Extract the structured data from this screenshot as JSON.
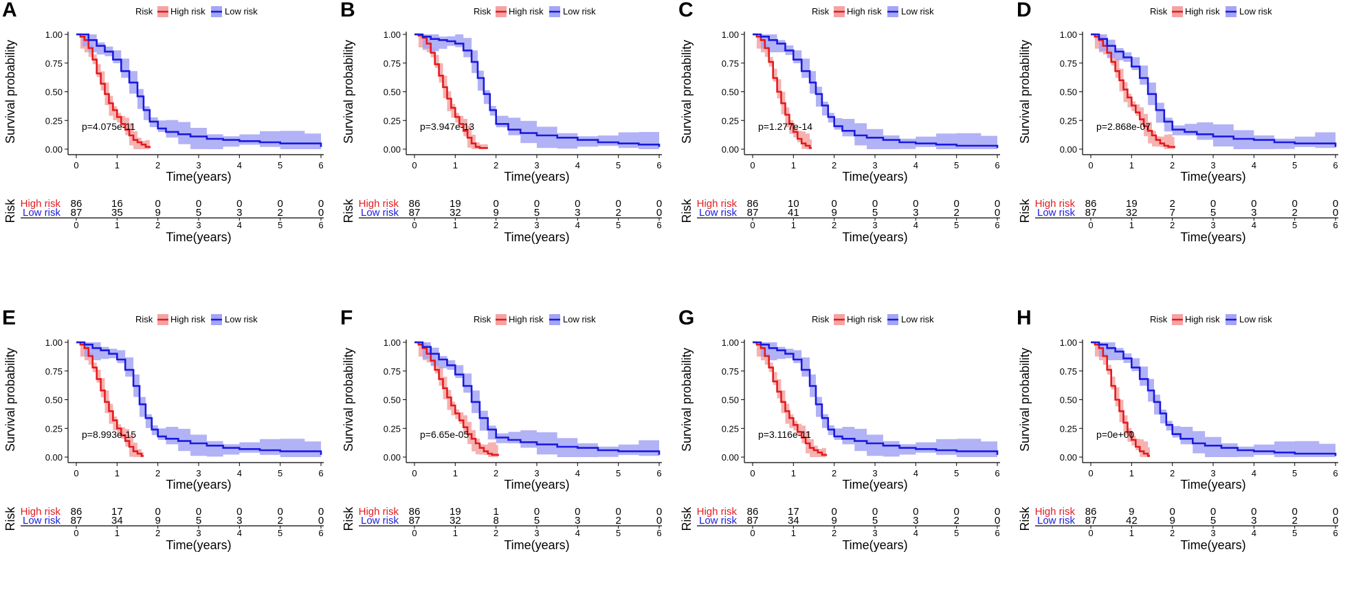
{
  "figure": {
    "xlabel": "Time(years)",
    "ylabel": "Survival probability",
    "table_ylabel": "Risk",
    "legend_title": "Risk",
    "colors": {
      "high": "#e41a1c",
      "low": "#1a1adf",
      "high_band": "#f4a3a3",
      "low_band": "#a5a5f5"
    }
  },
  "chart_data": [
    {
      "panel": "A",
      "type": "line",
      "pvalue": "p=4.075e-11",
      "xlim": [
        0,
        6
      ],
      "ylim": [
        0,
        1
      ],
      "xticks": [
        "0",
        "1",
        "2",
        "3",
        "4",
        "5",
        "6"
      ],
      "yticks": [
        "0.00",
        "0.25",
        "0.50",
        "0.75",
        "1.00"
      ],
      "series": [
        {
          "name": "High risk",
          "x": [
            0,
            0.1,
            0.2,
            0.3,
            0.4,
            0.5,
            0.6,
            0.7,
            0.8,
            0.9,
            1,
            1.1,
            1.2,
            1.3,
            1.4,
            1.5,
            1.6,
            1.7,
            1.8
          ],
          "y": [
            1,
            0.98,
            0.95,
            0.88,
            0.78,
            0.66,
            0.57,
            0.48,
            0.4,
            0.34,
            0.28,
            0.22,
            0.17,
            0.12,
            0.08,
            0.06,
            0.04,
            0.02,
            0.01
          ]
        },
        {
          "name": "Low risk",
          "x": [
            0,
            0.15,
            0.3,
            0.5,
            0.7,
            0.9,
            1.1,
            1.3,
            1.5,
            1.65,
            1.8,
            2,
            2.2,
            2.5,
            2.8,
            3.2,
            3.6,
            4,
            4.5,
            5,
            5.6,
            6
          ],
          "y": [
            1,
            1,
            0.95,
            0.9,
            0.85,
            0.78,
            0.68,
            0.58,
            0.46,
            0.34,
            0.24,
            0.18,
            0.15,
            0.13,
            0.11,
            0.09,
            0.08,
            0.07,
            0.06,
            0.05,
            0.05,
            0.02
          ]
        }
      ],
      "risk_table": {
        "High risk": [
          86,
          16,
          0,
          0,
          0,
          0,
          0
        ],
        "Low risk": [
          87,
          35,
          9,
          5,
          3,
          2,
          0
        ]
      }
    },
    {
      "panel": "B",
      "type": "line",
      "pvalue": "p=3.947e-13",
      "xlim": [
        0,
        6
      ],
      "ylim": [
        0,
        1
      ],
      "xticks": [
        "0",
        "1",
        "2",
        "3",
        "4",
        "5",
        "6"
      ],
      "yticks": [
        "0.00",
        "0.25",
        "0.50",
        "0.75",
        "1.00"
      ],
      "series": [
        {
          "name": "High risk",
          "x": [
            0,
            0.1,
            0.2,
            0.3,
            0.4,
            0.5,
            0.6,
            0.7,
            0.8,
            0.9,
            1,
            1.1,
            1.2,
            1.3,
            1.4,
            1.5,
            1.6,
            1.8
          ],
          "y": [
            1,
            0.99,
            0.97,
            0.92,
            0.84,
            0.74,
            0.64,
            0.54,
            0.44,
            0.36,
            0.28,
            0.22,
            0.16,
            0.1,
            0.05,
            0.02,
            0.01,
            0.01
          ]
        },
        {
          "name": "Low risk",
          "x": [
            0,
            0.2,
            0.4,
            0.6,
            0.8,
            1,
            1.2,
            1.4,
            1.55,
            1.7,
            1.85,
            2,
            2.3,
            2.6,
            3,
            3.5,
            4,
            4.5,
            5,
            5.5,
            6
          ],
          "y": [
            1,
            0.98,
            0.96,
            0.95,
            0.94,
            0.92,
            0.86,
            0.76,
            0.62,
            0.48,
            0.34,
            0.22,
            0.17,
            0.14,
            0.12,
            0.1,
            0.08,
            0.06,
            0.05,
            0.04,
            0.02
          ]
        }
      ],
      "risk_table": {
        "High risk": [
          86,
          19,
          0,
          0,
          0,
          0,
          0
        ],
        "Low risk": [
          87,
          32,
          9,
          5,
          3,
          2,
          0
        ]
      }
    },
    {
      "panel": "C",
      "type": "line",
      "pvalue": "p=1.277e-14",
      "xlim": [
        0,
        6
      ],
      "ylim": [
        0,
        1
      ],
      "xticks": [
        "0",
        "1",
        "2",
        "3",
        "4",
        "5",
        "6"
      ],
      "yticks": [
        "0.00",
        "0.25",
        "0.50",
        "0.75",
        "1.00"
      ],
      "series": [
        {
          "name": "High risk",
          "x": [
            0,
            0.1,
            0.2,
            0.3,
            0.4,
            0.5,
            0.6,
            0.7,
            0.8,
            0.9,
            1,
            1.1,
            1.2,
            1.3,
            1.4,
            1.45
          ],
          "y": [
            1,
            0.98,
            0.95,
            0.88,
            0.76,
            0.62,
            0.5,
            0.4,
            0.3,
            0.22,
            0.15,
            0.09,
            0.05,
            0.03,
            0.01,
            0.01
          ]
        },
        {
          "name": "Low risk",
          "x": [
            0,
            0.2,
            0.4,
            0.6,
            0.8,
            1,
            1.2,
            1.4,
            1.55,
            1.7,
            1.85,
            2,
            2.2,
            2.5,
            2.8,
            3.2,
            3.6,
            4,
            4.5,
            5,
            5.6,
            6
          ],
          "y": [
            1,
            0.98,
            0.95,
            0.92,
            0.86,
            0.78,
            0.68,
            0.58,
            0.48,
            0.38,
            0.28,
            0.2,
            0.16,
            0.12,
            0.1,
            0.08,
            0.06,
            0.05,
            0.04,
            0.03,
            0.03,
            0.01
          ]
        }
      ],
      "risk_table": {
        "High risk": [
          86,
          10,
          0,
          0,
          0,
          0,
          0
        ],
        "Low risk": [
          87,
          41,
          9,
          5,
          3,
          2,
          0
        ]
      }
    },
    {
      "panel": "D",
      "type": "line",
      "pvalue": "p=2.868e-07",
      "xlim": [
        0,
        6
      ],
      "ylim": [
        0,
        1
      ],
      "xticks": [
        "0",
        "1",
        "2",
        "3",
        "4",
        "5",
        "6"
      ],
      "yticks": [
        "0.00",
        "0.25",
        "0.50",
        "0.75",
        "1.00"
      ],
      "series": [
        {
          "name": "High risk",
          "x": [
            0,
            0.1,
            0.2,
            0.3,
            0.4,
            0.5,
            0.6,
            0.7,
            0.8,
            0.9,
            1,
            1.1,
            1.2,
            1.3,
            1.4,
            1.5,
            1.6,
            1.7,
            1.8,
            1.9,
            2,
            2.05
          ],
          "y": [
            1,
            0.98,
            0.95,
            0.9,
            0.84,
            0.76,
            0.68,
            0.6,
            0.52,
            0.45,
            0.38,
            0.32,
            0.26,
            0.2,
            0.16,
            0.12,
            0.08,
            0.05,
            0.03,
            0.02,
            0.02,
            0.01
          ]
        },
        {
          "name": "Low risk",
          "x": [
            0,
            0.2,
            0.4,
            0.6,
            0.8,
            1,
            1.2,
            1.4,
            1.6,
            1.8,
            2,
            2.3,
            2.6,
            3,
            3.5,
            4,
            4.5,
            5,
            5.5,
            6
          ],
          "y": [
            1,
            0.96,
            0.9,
            0.85,
            0.8,
            0.72,
            0.62,
            0.48,
            0.34,
            0.24,
            0.17,
            0.15,
            0.13,
            0.11,
            0.09,
            0.08,
            0.06,
            0.05,
            0.05,
            0.02
          ]
        }
      ],
      "risk_table": {
        "High risk": [
          86,
          19,
          2,
          0,
          0,
          0,
          0
        ],
        "Low risk": [
          87,
          32,
          7,
          5,
          3,
          2,
          0
        ]
      }
    },
    {
      "panel": "E",
      "type": "line",
      "pvalue": "p=8.993e-15",
      "xlim": [
        0,
        6
      ],
      "ylim": [
        0,
        1
      ],
      "xticks": [
        "0",
        "1",
        "2",
        "3",
        "4",
        "5",
        "6"
      ],
      "yticks": [
        "0.00",
        "0.25",
        "0.50",
        "0.75",
        "1.00"
      ],
      "series": [
        {
          "name": "High risk",
          "x": [
            0,
            0.1,
            0.2,
            0.3,
            0.4,
            0.5,
            0.6,
            0.7,
            0.8,
            0.9,
            1,
            1.1,
            1.2,
            1.3,
            1.4,
            1.5,
            1.6,
            1.65
          ],
          "y": [
            1,
            0.98,
            0.95,
            0.88,
            0.78,
            0.68,
            0.58,
            0.48,
            0.4,
            0.32,
            0.25,
            0.19,
            0.14,
            0.09,
            0.05,
            0.03,
            0.01,
            0.01
          ]
        },
        {
          "name": "Low risk",
          "x": [
            0,
            0.2,
            0.4,
            0.6,
            0.8,
            1,
            1.2,
            1.4,
            1.55,
            1.7,
            1.85,
            2,
            2.2,
            2.5,
            2.8,
            3.2,
            3.6,
            4,
            4.5,
            5,
            5.6,
            6
          ],
          "y": [
            1,
            0.98,
            0.95,
            0.93,
            0.9,
            0.85,
            0.76,
            0.62,
            0.46,
            0.34,
            0.24,
            0.18,
            0.16,
            0.14,
            0.12,
            0.1,
            0.08,
            0.07,
            0.06,
            0.05,
            0.05,
            0.02
          ]
        }
      ],
      "risk_table": {
        "High risk": [
          86,
          17,
          0,
          0,
          0,
          0,
          0
        ],
        "Low risk": [
          87,
          34,
          9,
          5,
          3,
          2,
          0
        ]
      }
    },
    {
      "panel": "F",
      "type": "line",
      "pvalue": "p=6.65e-05",
      "xlim": [
        0,
        6
      ],
      "ylim": [
        0,
        1
      ],
      "xticks": [
        "0",
        "1",
        "2",
        "3",
        "4",
        "5",
        "6"
      ],
      "yticks": [
        "0.00",
        "0.25",
        "0.50",
        "0.75",
        "1.00"
      ],
      "series": [
        {
          "name": "High risk",
          "x": [
            0,
            0.1,
            0.2,
            0.3,
            0.4,
            0.5,
            0.6,
            0.7,
            0.8,
            0.9,
            1,
            1.1,
            1.2,
            1.3,
            1.4,
            1.5,
            1.6,
            1.7,
            1.8,
            1.9,
            2,
            2.05
          ],
          "y": [
            1,
            0.98,
            0.95,
            0.9,
            0.84,
            0.76,
            0.68,
            0.6,
            0.52,
            0.45,
            0.38,
            0.32,
            0.26,
            0.2,
            0.16,
            0.12,
            0.08,
            0.05,
            0.03,
            0.02,
            0.02,
            0.01
          ]
        },
        {
          "name": "Low risk",
          "x": [
            0,
            0.2,
            0.4,
            0.6,
            0.8,
            1,
            1.2,
            1.4,
            1.6,
            1.8,
            2,
            2.3,
            2.6,
            3,
            3.5,
            4,
            4.5,
            5,
            5.5,
            6
          ],
          "y": [
            1,
            0.96,
            0.9,
            0.85,
            0.8,
            0.72,
            0.62,
            0.48,
            0.34,
            0.24,
            0.17,
            0.15,
            0.13,
            0.11,
            0.09,
            0.08,
            0.06,
            0.05,
            0.05,
            0.02
          ]
        }
      ],
      "risk_table": {
        "High risk": [
          86,
          19,
          1,
          0,
          0,
          0,
          0
        ],
        "Low risk": [
          87,
          32,
          8,
          5,
          3,
          2,
          0
        ]
      }
    },
    {
      "panel": "G",
      "type": "line",
      "pvalue": "p=3.116e-11",
      "xlim": [
        0,
        6
      ],
      "ylim": [
        0,
        1
      ],
      "xticks": [
        "0",
        "1",
        "2",
        "3",
        "4",
        "5",
        "6"
      ],
      "yticks": [
        "0.00",
        "0.25",
        "0.50",
        "0.75",
        "1.00"
      ],
      "series": [
        {
          "name": "High risk",
          "x": [
            0,
            0.1,
            0.2,
            0.3,
            0.4,
            0.5,
            0.6,
            0.7,
            0.8,
            0.9,
            1,
            1.1,
            1.2,
            1.3,
            1.4,
            1.5,
            1.6,
            1.7,
            1.8
          ],
          "y": [
            1,
            0.98,
            0.95,
            0.88,
            0.78,
            0.66,
            0.57,
            0.48,
            0.4,
            0.34,
            0.28,
            0.22,
            0.17,
            0.12,
            0.08,
            0.06,
            0.04,
            0.02,
            0.01
          ]
        },
        {
          "name": "Low risk",
          "x": [
            0,
            0.2,
            0.4,
            0.6,
            0.8,
            1,
            1.2,
            1.4,
            1.55,
            1.7,
            1.85,
            2,
            2.2,
            2.5,
            2.8,
            3.2,
            3.6,
            4,
            4.5,
            5,
            5.6,
            6
          ],
          "y": [
            1,
            0.98,
            0.95,
            0.93,
            0.9,
            0.85,
            0.76,
            0.62,
            0.46,
            0.34,
            0.24,
            0.18,
            0.16,
            0.14,
            0.12,
            0.1,
            0.08,
            0.07,
            0.06,
            0.05,
            0.05,
            0.02
          ]
        }
      ],
      "risk_table": {
        "High risk": [
          86,
          17,
          0,
          0,
          0,
          0,
          0
        ],
        "Low risk": [
          87,
          34,
          9,
          5,
          3,
          2,
          0
        ]
      }
    },
    {
      "panel": "H",
      "type": "line",
      "pvalue": "p=0e+00",
      "xlim": [
        0,
        6
      ],
      "ylim": [
        0,
        1
      ],
      "xticks": [
        "0",
        "1",
        "2",
        "3",
        "4",
        "5",
        "6"
      ],
      "yticks": [
        "0.00",
        "0.25",
        "0.50",
        "0.75",
        "1.00"
      ],
      "series": [
        {
          "name": "High risk",
          "x": [
            0,
            0.1,
            0.2,
            0.3,
            0.4,
            0.5,
            0.6,
            0.7,
            0.8,
            0.9,
            1,
            1.1,
            1.2,
            1.3,
            1.4,
            1.45
          ],
          "y": [
            1,
            0.98,
            0.95,
            0.88,
            0.76,
            0.62,
            0.5,
            0.4,
            0.3,
            0.22,
            0.15,
            0.09,
            0.05,
            0.03,
            0.01,
            0.01
          ]
        },
        {
          "name": "Low risk",
          "x": [
            0,
            0.2,
            0.4,
            0.6,
            0.8,
            1,
            1.2,
            1.4,
            1.55,
            1.7,
            1.85,
            2,
            2.2,
            2.5,
            2.8,
            3.2,
            3.6,
            4,
            4.5,
            5,
            5.6,
            6
          ],
          "y": [
            1,
            0.98,
            0.95,
            0.92,
            0.86,
            0.78,
            0.68,
            0.58,
            0.48,
            0.38,
            0.28,
            0.2,
            0.16,
            0.12,
            0.1,
            0.08,
            0.06,
            0.05,
            0.04,
            0.03,
            0.03,
            0.01
          ]
        }
      ],
      "risk_table": {
        "High risk": [
          86,
          9,
          0,
          0,
          0,
          0,
          0
        ],
        "Low risk": [
          87,
          42,
          9,
          5,
          3,
          2,
          0
        ]
      }
    }
  ]
}
